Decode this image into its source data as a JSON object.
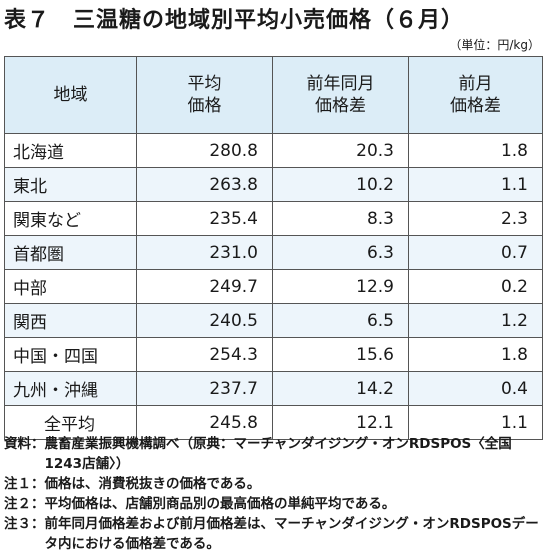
{
  "title": "表７　三温糖の地域別平均小売価格（６月）",
  "unit": "（単位：円/kg）",
  "table": {
    "headers": {
      "region": "地域",
      "avg_price": [
        "平均",
        "価格"
      ],
      "yoy_diff": [
        "前年同月",
        "価格差"
      ],
      "mom_diff": [
        "前月",
        "価格差"
      ]
    },
    "rows": [
      {
        "region": "北海道",
        "avg_price": "280.8",
        "yoy_diff": "20.3",
        "mom_diff": "1.8"
      },
      {
        "region": "東北",
        "avg_price": "263.8",
        "yoy_diff": "10.2",
        "mom_diff": "1.1"
      },
      {
        "region": "関東など",
        "avg_price": "235.4",
        "yoy_diff": "8.3",
        "mom_diff": "2.3"
      },
      {
        "region": "首都圏",
        "avg_price": "231.0",
        "yoy_diff": "6.3",
        "mom_diff": "0.7"
      },
      {
        "region": "中部",
        "avg_price": "249.7",
        "yoy_diff": "12.9",
        "mom_diff": "0.2"
      },
      {
        "region": "関西",
        "avg_price": "240.5",
        "yoy_diff": "6.5",
        "mom_diff": "1.2"
      },
      {
        "region": "中国・四国",
        "avg_price": "254.3",
        "yoy_diff": "15.6",
        "mom_diff": "1.8"
      },
      {
        "region": "九州・沖縄",
        "avg_price": "237.7",
        "yoy_diff": "14.2",
        "mom_diff": "0.4"
      },
      {
        "region": "全平均",
        "avg_price": "245.8",
        "yoy_diff": "12.1",
        "mom_diff": "1.1"
      }
    ]
  },
  "notes": [
    {
      "label": "資料：",
      "text": "農畜産業振興機構調べ（原典：マーチャンダイジング・オンRDSPOS〈全国1243店舗〉）"
    },
    {
      "label": "注１：",
      "text": "価格は、消費税抜きの価格である。"
    },
    {
      "label": "注２：",
      "text": "平均価格は、店舗別商品別の最高価格の単純平均である。"
    },
    {
      "label": "注３：",
      "text": "前年同月価格差および前月価格差は、マーチャンダイジング・オンRDSPOSデータ内における価格差である。"
    }
  ]
}
